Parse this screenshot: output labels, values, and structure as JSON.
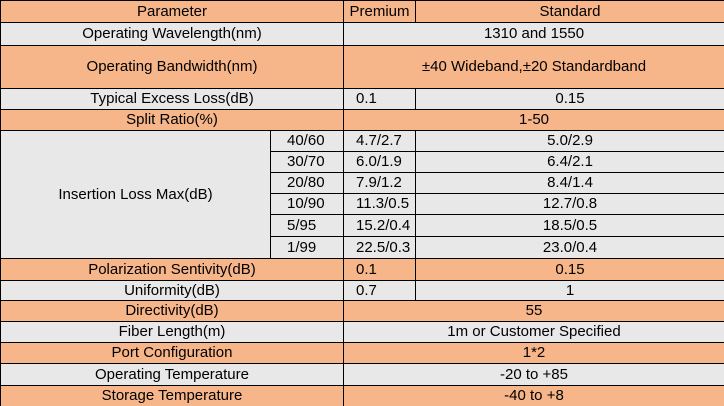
{
  "table": {
    "header": [
      "Parameter",
      "Premium",
      "Standard"
    ],
    "rows": [
      {
        "label": "Operating Wavelength(nm)",
        "value": "1310 and 1550"
      },
      {
        "label": "Operating Bandwidth(nm)",
        "value": "±40 Wideband,±20 Standardband"
      },
      {
        "label": "Typical Excess Loss(dB)",
        "premium": "0.1",
        "standard": "0.15"
      },
      {
        "label": "Split Ratio(%)",
        "value": "1-50"
      },
      {
        "label": "Insertion Loss Max(dB)",
        "sub": [
          [
            "40/60",
            "4.7/2.7",
            "5.0/2.9"
          ],
          [
            "30/70",
            "6.0/1.9",
            "6.4/2.1"
          ],
          [
            "20/80",
            "7.9/1.2",
            "8.4/1.4"
          ],
          [
            "10/90",
            "11.3/0.5",
            "12.7/0.8"
          ],
          [
            "5/95",
            "15.2/0.4",
            "18.5/0.5"
          ],
          [
            "1/99",
            "22.5/0.3",
            "23.0/0.4"
          ]
        ]
      },
      {
        "label": "Polarization Sentivity(dB)",
        "premium": "0.1",
        "standard": "0.15"
      },
      {
        "label": "Uniformity(dB)",
        "premium": "0.7",
        "standard": "1"
      },
      {
        "label": "Directivity(dB)",
        "value": "55"
      },
      {
        "label": "Fiber Length(m)",
        "value": "1m or Customer Specified"
      },
      {
        "label": "Port Configuration",
        "value": "1*2"
      },
      {
        "label": "Operating Temperature",
        "value": "-20 to +85"
      },
      {
        "label": "Storage Temperature",
        "value": "-40 to +8"
      }
    ]
  }
}
